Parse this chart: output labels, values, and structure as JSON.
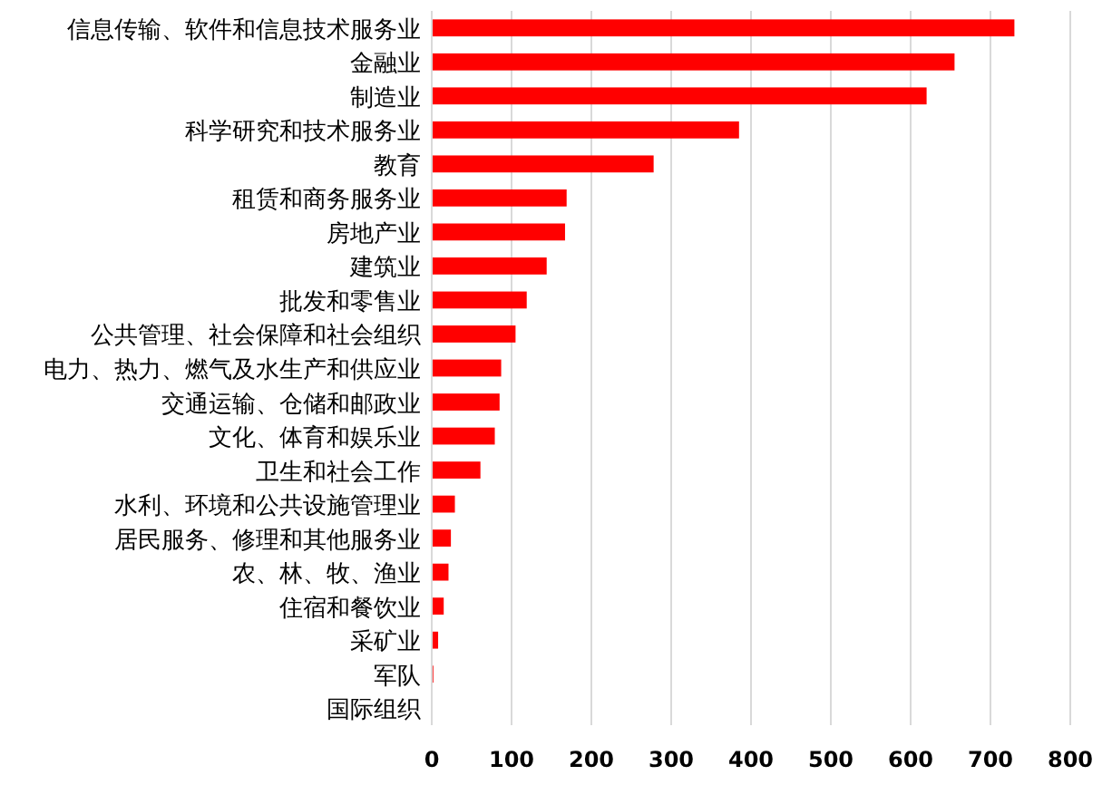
{
  "chart_data": {
    "type": "bar",
    "orientation": "horizontal",
    "categories": [
      "信息传输、软件和信息技术服务业",
      "金融业",
      "制造业",
      "科学研究和技术服务业",
      "教育",
      "租赁和商务服务业",
      "房地产业",
      "建筑业",
      "批发和零售业",
      "公共管理、社会保障和社会组织",
      "电力、热力、燃气及水生产和供应业",
      "交通运输、仓储和邮政业",
      "文化、体育和娱乐业",
      "卫生和社会工作",
      "水利、环境和公共设施管理业",
      "居民服务、修理和其他服务业",
      "农、林、牧、渔业",
      "住宿和餐饮业",
      "采矿业",
      "军队",
      "国际组织"
    ],
    "values": [
      730,
      655,
      620,
      385,
      278,
      169,
      167,
      144,
      119,
      105,
      87,
      85,
      79,
      61,
      29,
      24,
      21,
      15,
      8,
      2,
      0
    ],
    "color": "#ff0000",
    "xlim": [
      0,
      800
    ],
    "xticks": [
      0,
      100,
      200,
      300,
      400,
      500,
      600,
      700,
      800
    ],
    "grid": "x"
  }
}
